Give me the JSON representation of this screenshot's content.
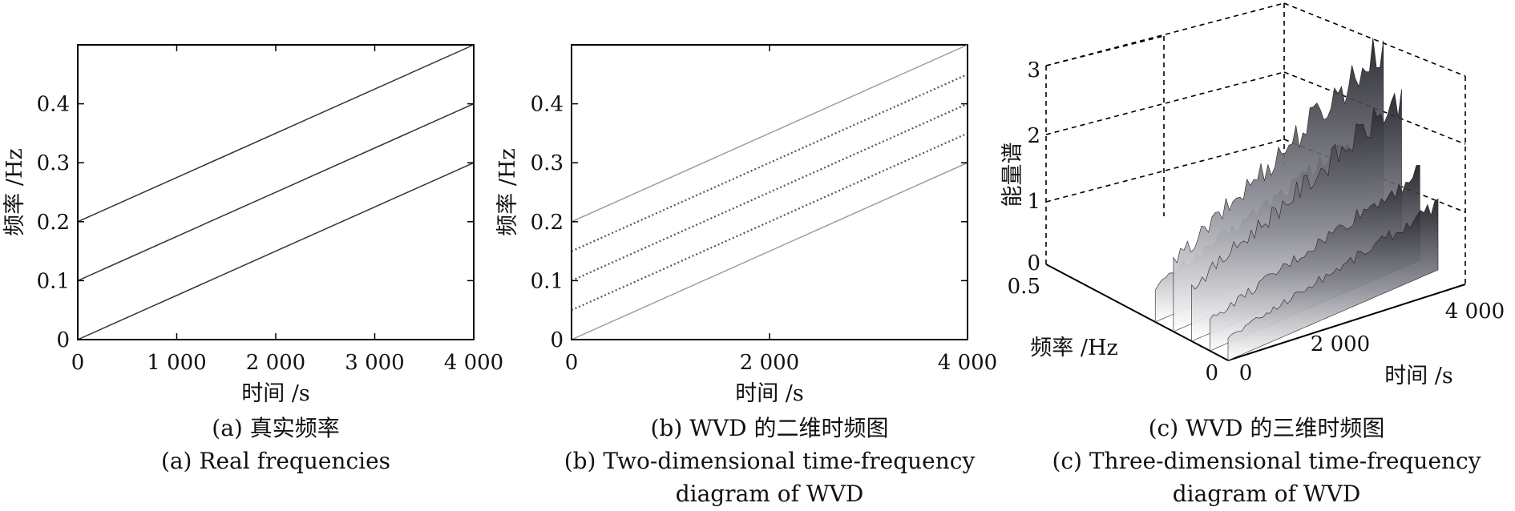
{
  "chart_data": [
    {
      "id": "a",
      "type": "line",
      "caption_cn": "(a) 真实频率",
      "caption_en": "(a) Real frequencies",
      "xlabel": "时间 /s",
      "ylabel": "频率 /Hz",
      "xlim": [
        0,
        4000
      ],
      "ylim": [
        0,
        0.5
      ],
      "xticks": [
        0,
        1000,
        2000,
        3000,
        4000
      ],
      "xtick_labels": [
        "0",
        "1 000",
        "2 000",
        "3 000",
        "4 000"
      ],
      "yticks": [
        0,
        0.1,
        0.2,
        0.3,
        0.4
      ],
      "ytick_labels": [
        "0",
        "0.1",
        "0.2",
        "0.3",
        "0.4"
      ],
      "series": [
        {
          "x": [
            0,
            4000
          ],
          "y": [
            0.0,
            0.3
          ]
        },
        {
          "x": [
            0,
            4000
          ],
          "y": [
            0.1,
            0.4
          ]
        },
        {
          "x": [
            0,
            4000
          ],
          "y": [
            0.2,
            0.5
          ]
        }
      ],
      "line_color": "#333333"
    },
    {
      "id": "b",
      "type": "line",
      "caption_cn": "(b) WVD 的二维时频图",
      "caption_en_line1": "(b) Two-dimensional time-frequency",
      "caption_en_line2": "diagram of WVD",
      "xlabel": "时间 /s",
      "ylabel": "频率 /Hz",
      "xlim": [
        0,
        4000
      ],
      "ylim": [
        0,
        0.5
      ],
      "xticks": [
        0,
        2000,
        4000
      ],
      "xtick_labels": [
        "0",
        "2 000",
        "4 000"
      ],
      "yticks": [
        0,
        0.1,
        0.2,
        0.3,
        0.4
      ],
      "ytick_labels": [
        "0",
        "0.1",
        "0.2",
        "0.3",
        "0.4"
      ],
      "series": [
        {
          "x": [
            0,
            4000
          ],
          "y": [
            0.0,
            0.3
          ],
          "style": "auto-term"
        },
        {
          "x": [
            0,
            4000
          ],
          "y": [
            0.05,
            0.35
          ],
          "style": "cross-term"
        },
        {
          "x": [
            0,
            4000
          ],
          "y": [
            0.1,
            0.4
          ],
          "style": "cross-term"
        },
        {
          "x": [
            0,
            4000
          ],
          "y": [
            0.15,
            0.45
          ],
          "style": "cross-term"
        },
        {
          "x": [
            0,
            4000
          ],
          "y": [
            0.2,
            0.5
          ],
          "style": "auto-term"
        }
      ]
    },
    {
      "id": "c",
      "type": "surface3d",
      "caption_cn": "(c) WVD 的三维时频图",
      "caption_en_line1": "(c) Three-dimensional time-frequency",
      "caption_en_line2": "diagram of WVD",
      "xlabel": "时间 /s",
      "ylabel": "频率 /Hz",
      "zlabel": "能量谱",
      "xlim": [
        0,
        4000
      ],
      "ylim": [
        0,
        0.5
      ],
      "zlim": [
        0,
        3
      ],
      "x_tick_labels": [
        "0",
        "2 000",
        "4 000"
      ],
      "y_tick_labels": [
        "0",
        "0.5"
      ],
      "z_tick_labels": [
        "0",
        "1",
        "2",
        "3"
      ],
      "ridges": [
        {
          "freq_start": 0.0,
          "peak_energy": 1.1
        },
        {
          "freq_start": 0.05,
          "peak_energy": 1.5
        },
        {
          "freq_start": 0.1,
          "peak_energy": 2.6
        },
        {
          "freq_start": 0.15,
          "peak_energy": 3.3
        },
        {
          "freq_start": 0.2,
          "peak_energy": 1.7
        }
      ]
    }
  ]
}
